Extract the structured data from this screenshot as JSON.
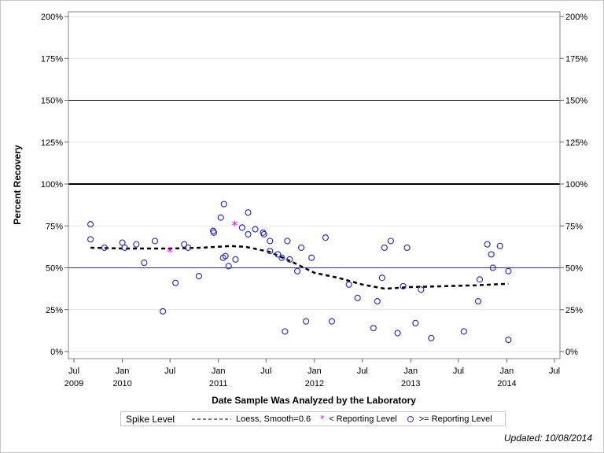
{
  "chart_data": {
    "type": "scatter",
    "xlabel": "Date Sample Was Analyzed by the Laboratory",
    "ylabel": "Percent Recovery",
    "xlim": [
      "2009-06-01",
      "2014-08-01"
    ],
    "ylim": [
      -2,
      206
    ],
    "x_ticks": [
      {
        "date": "2009-07-01",
        "label": "Jul",
        "year": "2009"
      },
      {
        "date": "2010-01-01",
        "label": "Jan",
        "year": "2010"
      },
      {
        "date": "2010-07-01",
        "label": "Jul",
        "year": ""
      },
      {
        "date": "2011-01-01",
        "label": "Jan",
        "year": "2011"
      },
      {
        "date": "2011-07-01",
        "label": "Jul",
        "year": ""
      },
      {
        "date": "2012-01-01",
        "label": "Jan",
        "year": "2012"
      },
      {
        "date": "2012-07-01",
        "label": "Jul",
        "year": ""
      },
      {
        "date": "2013-01-01",
        "label": "Jan",
        "year": "2013"
      },
      {
        "date": "2013-07-01",
        "label": "Jul",
        "year": ""
      },
      {
        "date": "2014-01-01",
        "label": "Jan",
        "year": "2014"
      },
      {
        "date": "2014-07-01",
        "label": "Jul",
        "year": ""
      }
    ],
    "y_ticks": [
      0,
      25,
      50,
      75,
      100,
      125,
      150,
      175,
      200
    ],
    "y_tick_labels": [
      "0%",
      "25%",
      "50%",
      "75%",
      "100%",
      "125%",
      "150%",
      "175%",
      "200%"
    ],
    "grid": true,
    "reference_lines": [
      {
        "y": 150,
        "color": "#000000",
        "style": "thin"
      },
      {
        "y": 100,
        "color": "#000000",
        "style": "thick"
      },
      {
        "y": 50,
        "color": "#3333cc",
        "style": "thin"
      }
    ],
    "legend_position": "bottom",
    "legend_title": "Spike Level",
    "series": [
      {
        "name": "Loess, Smooth=0.6",
        "type": "line",
        "color": "#000000",
        "dash": true,
        "points": [
          [
            "2009-09-02",
            62
          ],
          [
            "2010-01-01",
            61.5
          ],
          [
            "2010-07-01",
            61.5
          ],
          [
            "2010-11-01",
            62
          ],
          [
            "2011-02-15",
            63
          ],
          [
            "2011-04-15",
            62.5
          ],
          [
            "2011-07-15",
            59.5
          ],
          [
            "2011-10-15",
            53
          ],
          [
            "2012-01-01",
            47
          ],
          [
            "2012-04-01",
            44
          ],
          [
            "2012-07-01",
            40
          ],
          [
            "2012-09-25",
            37.5
          ],
          [
            "2013-01-01",
            38.5
          ],
          [
            "2013-05-01",
            39
          ],
          [
            "2013-09-01",
            39.5
          ],
          [
            "2014-01-07",
            40.5
          ]
        ]
      },
      {
        "name": "< Reporting Level",
        "type": "scatter",
        "marker": "star",
        "color": "#ff00ff",
        "points": [
          [
            "2010-07-01",
            60
          ],
          [
            "2011-03-04",
            76
          ]
        ]
      },
      {
        "name": ">= Reporting Level",
        "type": "scatter",
        "marker": "circle",
        "color": "#3333cc",
        "points": [
          [
            "2009-09-02",
            76
          ],
          [
            "2009-09-02",
            67
          ],
          [
            "2009-10-25",
            62
          ],
          [
            "2010-01-01",
            65
          ],
          [
            "2010-01-10",
            62
          ],
          [
            "2010-02-23",
            64
          ],
          [
            "2010-03-25",
            53
          ],
          [
            "2010-05-05",
            66
          ],
          [
            "2010-06-04",
            24
          ],
          [
            "2010-07-22",
            41
          ],
          [
            "2010-08-24",
            64
          ],
          [
            "2010-09-08",
            62
          ],
          [
            "2010-10-19",
            45
          ],
          [
            "2010-12-12",
            72
          ],
          [
            "2010-12-15",
            71
          ],
          [
            "2011-01-10",
            80
          ],
          [
            "2011-01-22",
            88
          ],
          [
            "2011-01-19",
            56
          ],
          [
            "2011-01-28",
            57
          ],
          [
            "2011-02-09",
            51
          ],
          [
            "2011-03-07",
            55
          ],
          [
            "2011-04-01",
            74
          ],
          [
            "2011-04-24",
            70
          ],
          [
            "2011-04-24",
            83
          ],
          [
            "2011-05-21",
            73
          ],
          [
            "2011-06-20",
            71
          ],
          [
            "2011-06-23",
            70
          ],
          [
            "2011-07-16",
            60
          ],
          [
            "2011-07-16",
            66
          ],
          [
            "2011-08-15",
            58
          ],
          [
            "2011-08-30",
            56
          ],
          [
            "2011-09-11",
            12
          ],
          [
            "2011-09-20",
            66
          ],
          [
            "2011-09-29",
            55
          ],
          [
            "2011-10-28",
            48
          ],
          [
            "2011-11-12",
            62
          ],
          [
            "2011-11-30",
            18
          ],
          [
            "2011-12-21",
            56
          ],
          [
            "2012-02-12",
            68
          ],
          [
            "2012-03-07",
            18
          ],
          [
            "2012-05-11",
            40
          ],
          [
            "2012-06-13",
            32
          ],
          [
            "2012-08-12",
            14
          ],
          [
            "2012-08-27",
            30
          ],
          [
            "2012-09-14",
            44
          ],
          [
            "2012-09-23",
            62
          ],
          [
            "2012-10-17",
            66
          ],
          [
            "2012-11-12",
            11
          ],
          [
            "2012-12-03",
            39
          ],
          [
            "2012-12-18",
            62
          ],
          [
            "2013-01-19",
            17
          ],
          [
            "2013-02-09",
            37
          ],
          [
            "2013-03-20",
            8
          ],
          [
            "2013-07-22",
            12
          ],
          [
            "2013-09-14",
            30
          ],
          [
            "2013-09-20",
            43
          ],
          [
            "2013-10-19",
            64
          ],
          [
            "2013-11-03",
            58
          ],
          [
            "2013-11-09",
            50
          ],
          [
            "2013-12-06",
            63
          ],
          [
            "2014-01-07",
            7
          ],
          [
            "2014-01-07",
            48
          ]
        ]
      }
    ]
  },
  "legend": {
    "title": "Spike Level",
    "loess_label": "Loess, Smooth=0.6",
    "below_label": "< Reporting Level",
    "above_label": ">= Reporting Level"
  },
  "footer": {
    "updated": "Updated: 10/08/2014"
  }
}
